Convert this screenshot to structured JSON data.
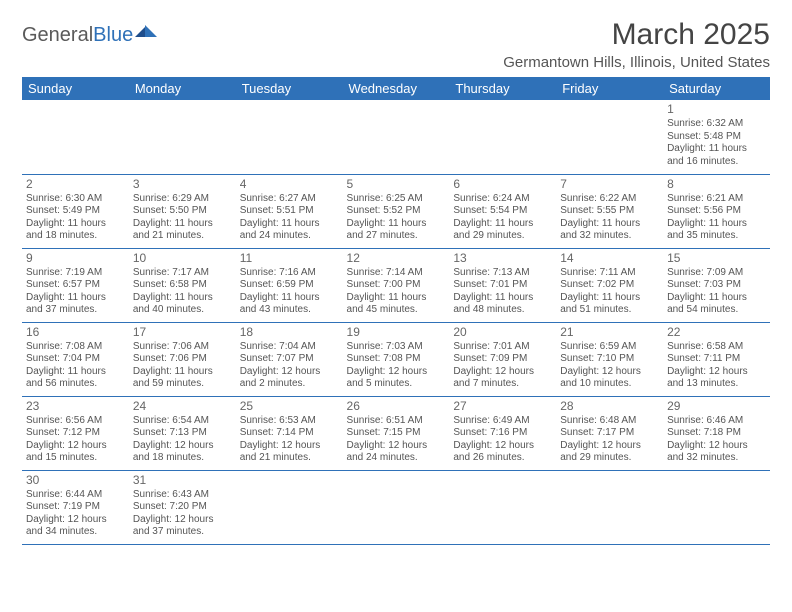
{
  "logo": {
    "word1": "General",
    "word2": "Blue"
  },
  "title": "March 2025",
  "location": "Germantown Hills, Illinois, United States",
  "header_bg": "#2f71b8",
  "header_fg": "#ffffff",
  "border_color": "#2f71b8",
  "day_headers": [
    "Sunday",
    "Monday",
    "Tuesday",
    "Wednesday",
    "Thursday",
    "Friday",
    "Saturday"
  ],
  "weeks": [
    [
      null,
      null,
      null,
      null,
      null,
      null,
      {
        "n": "1",
        "sr": "Sunrise: 6:32 AM",
        "ss": "Sunset: 5:48 PM",
        "d1": "Daylight: 11 hours",
        "d2": "and 16 minutes."
      }
    ],
    [
      {
        "n": "2",
        "sr": "Sunrise: 6:30 AM",
        "ss": "Sunset: 5:49 PM",
        "d1": "Daylight: 11 hours",
        "d2": "and 18 minutes."
      },
      {
        "n": "3",
        "sr": "Sunrise: 6:29 AM",
        "ss": "Sunset: 5:50 PM",
        "d1": "Daylight: 11 hours",
        "d2": "and 21 minutes."
      },
      {
        "n": "4",
        "sr": "Sunrise: 6:27 AM",
        "ss": "Sunset: 5:51 PM",
        "d1": "Daylight: 11 hours",
        "d2": "and 24 minutes."
      },
      {
        "n": "5",
        "sr": "Sunrise: 6:25 AM",
        "ss": "Sunset: 5:52 PM",
        "d1": "Daylight: 11 hours",
        "d2": "and 27 minutes."
      },
      {
        "n": "6",
        "sr": "Sunrise: 6:24 AM",
        "ss": "Sunset: 5:54 PM",
        "d1": "Daylight: 11 hours",
        "d2": "and 29 minutes."
      },
      {
        "n": "7",
        "sr": "Sunrise: 6:22 AM",
        "ss": "Sunset: 5:55 PM",
        "d1": "Daylight: 11 hours",
        "d2": "and 32 minutes."
      },
      {
        "n": "8",
        "sr": "Sunrise: 6:21 AM",
        "ss": "Sunset: 5:56 PM",
        "d1": "Daylight: 11 hours",
        "d2": "and 35 minutes."
      }
    ],
    [
      {
        "n": "9",
        "sr": "Sunrise: 7:19 AM",
        "ss": "Sunset: 6:57 PM",
        "d1": "Daylight: 11 hours",
        "d2": "and 37 minutes."
      },
      {
        "n": "10",
        "sr": "Sunrise: 7:17 AM",
        "ss": "Sunset: 6:58 PM",
        "d1": "Daylight: 11 hours",
        "d2": "and 40 minutes."
      },
      {
        "n": "11",
        "sr": "Sunrise: 7:16 AM",
        "ss": "Sunset: 6:59 PM",
        "d1": "Daylight: 11 hours",
        "d2": "and 43 minutes."
      },
      {
        "n": "12",
        "sr": "Sunrise: 7:14 AM",
        "ss": "Sunset: 7:00 PM",
        "d1": "Daylight: 11 hours",
        "d2": "and 45 minutes."
      },
      {
        "n": "13",
        "sr": "Sunrise: 7:13 AM",
        "ss": "Sunset: 7:01 PM",
        "d1": "Daylight: 11 hours",
        "d2": "and 48 minutes."
      },
      {
        "n": "14",
        "sr": "Sunrise: 7:11 AM",
        "ss": "Sunset: 7:02 PM",
        "d1": "Daylight: 11 hours",
        "d2": "and 51 minutes."
      },
      {
        "n": "15",
        "sr": "Sunrise: 7:09 AM",
        "ss": "Sunset: 7:03 PM",
        "d1": "Daylight: 11 hours",
        "d2": "and 54 minutes."
      }
    ],
    [
      {
        "n": "16",
        "sr": "Sunrise: 7:08 AM",
        "ss": "Sunset: 7:04 PM",
        "d1": "Daylight: 11 hours",
        "d2": "and 56 minutes."
      },
      {
        "n": "17",
        "sr": "Sunrise: 7:06 AM",
        "ss": "Sunset: 7:06 PM",
        "d1": "Daylight: 11 hours",
        "d2": "and 59 minutes."
      },
      {
        "n": "18",
        "sr": "Sunrise: 7:04 AM",
        "ss": "Sunset: 7:07 PM",
        "d1": "Daylight: 12 hours",
        "d2": "and 2 minutes."
      },
      {
        "n": "19",
        "sr": "Sunrise: 7:03 AM",
        "ss": "Sunset: 7:08 PM",
        "d1": "Daylight: 12 hours",
        "d2": "and 5 minutes."
      },
      {
        "n": "20",
        "sr": "Sunrise: 7:01 AM",
        "ss": "Sunset: 7:09 PM",
        "d1": "Daylight: 12 hours",
        "d2": "and 7 minutes."
      },
      {
        "n": "21",
        "sr": "Sunrise: 6:59 AM",
        "ss": "Sunset: 7:10 PM",
        "d1": "Daylight: 12 hours",
        "d2": "and 10 minutes."
      },
      {
        "n": "22",
        "sr": "Sunrise: 6:58 AM",
        "ss": "Sunset: 7:11 PM",
        "d1": "Daylight: 12 hours",
        "d2": "and 13 minutes."
      }
    ],
    [
      {
        "n": "23",
        "sr": "Sunrise: 6:56 AM",
        "ss": "Sunset: 7:12 PM",
        "d1": "Daylight: 12 hours",
        "d2": "and 15 minutes."
      },
      {
        "n": "24",
        "sr": "Sunrise: 6:54 AM",
        "ss": "Sunset: 7:13 PM",
        "d1": "Daylight: 12 hours",
        "d2": "and 18 minutes."
      },
      {
        "n": "25",
        "sr": "Sunrise: 6:53 AM",
        "ss": "Sunset: 7:14 PM",
        "d1": "Daylight: 12 hours",
        "d2": "and 21 minutes."
      },
      {
        "n": "26",
        "sr": "Sunrise: 6:51 AM",
        "ss": "Sunset: 7:15 PM",
        "d1": "Daylight: 12 hours",
        "d2": "and 24 minutes."
      },
      {
        "n": "27",
        "sr": "Sunrise: 6:49 AM",
        "ss": "Sunset: 7:16 PM",
        "d1": "Daylight: 12 hours",
        "d2": "and 26 minutes."
      },
      {
        "n": "28",
        "sr": "Sunrise: 6:48 AM",
        "ss": "Sunset: 7:17 PM",
        "d1": "Daylight: 12 hours",
        "d2": "and 29 minutes."
      },
      {
        "n": "29",
        "sr": "Sunrise: 6:46 AM",
        "ss": "Sunset: 7:18 PM",
        "d1": "Daylight: 12 hours",
        "d2": "and 32 minutes."
      }
    ],
    [
      {
        "n": "30",
        "sr": "Sunrise: 6:44 AM",
        "ss": "Sunset: 7:19 PM",
        "d1": "Daylight: 12 hours",
        "d2": "and 34 minutes."
      },
      {
        "n": "31",
        "sr": "Sunrise: 6:43 AM",
        "ss": "Sunset: 7:20 PM",
        "d1": "Daylight: 12 hours",
        "d2": "and 37 minutes."
      },
      null,
      null,
      null,
      null,
      null
    ]
  ]
}
